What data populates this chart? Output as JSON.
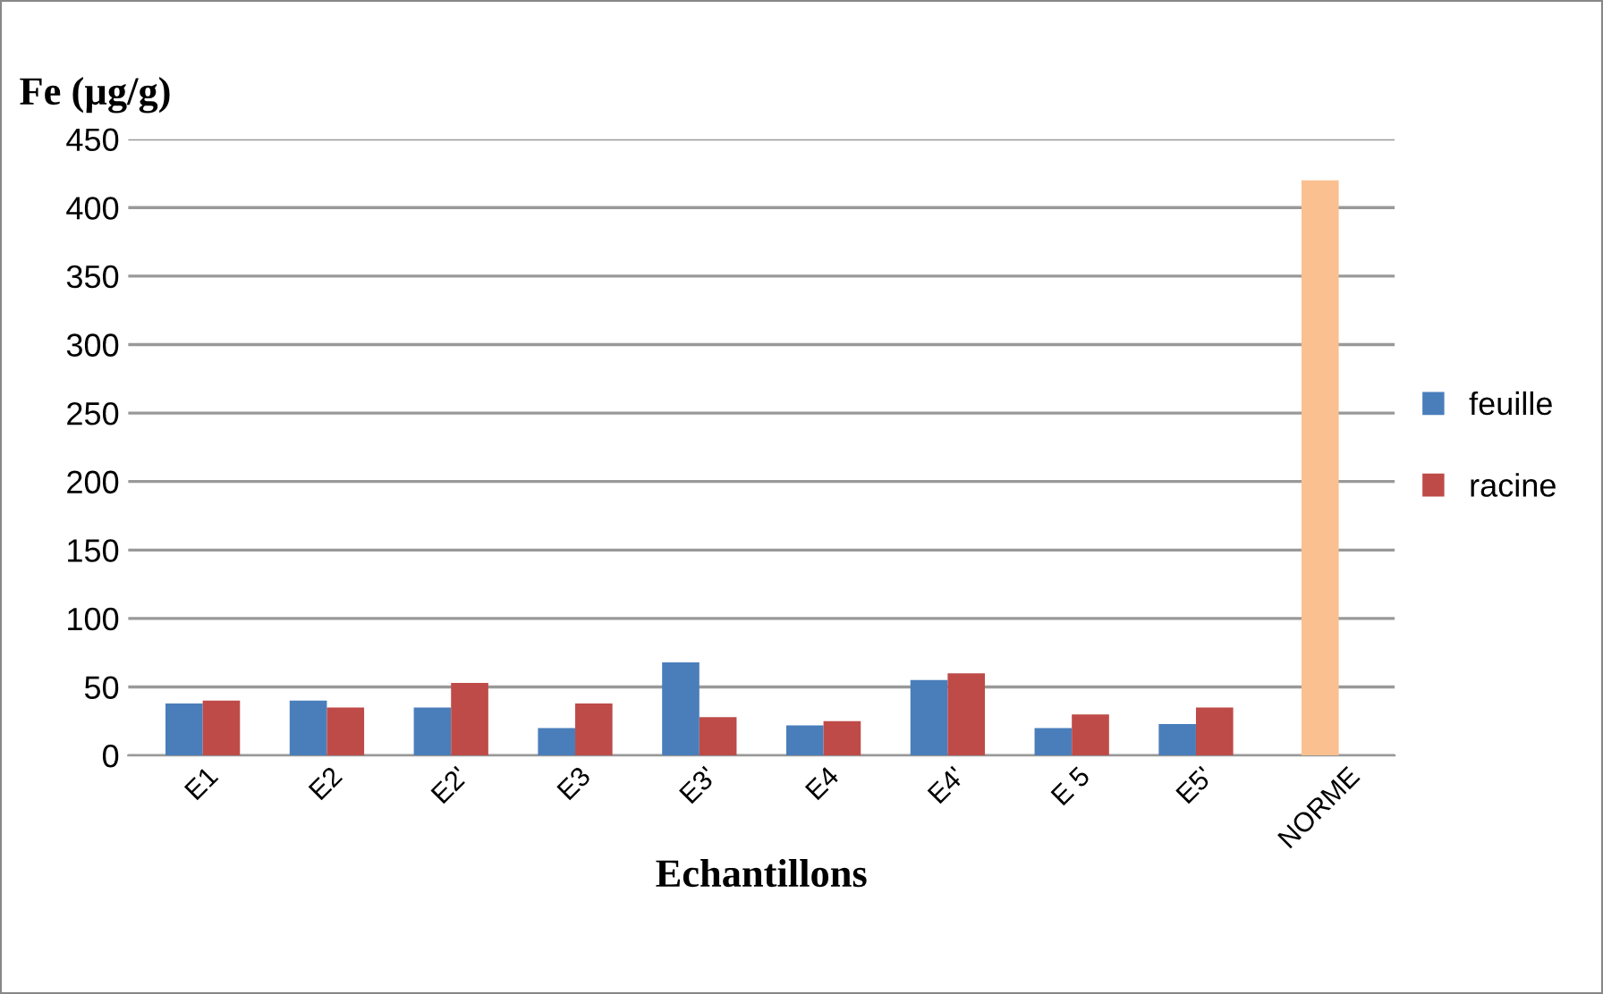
{
  "chart_data": {
    "type": "bar",
    "ylabel": "Fe (µg/g)",
    "xlabel": "Echantillons",
    "categories": [
      "E1",
      "E2",
      "E2'",
      "E3",
      "E3'",
      "E4",
      "E4'",
      "E 5",
      "E5'",
      "NORME"
    ],
    "series": [
      {
        "name": "feuille",
        "color": "#4a7ebb",
        "values": [
          38,
          40,
          35,
          20,
          68,
          22,
          55,
          20,
          23,
          null
        ]
      },
      {
        "name": "racine",
        "color": "#be4b48",
        "values": [
          40,
          35,
          53,
          38,
          28,
          25,
          60,
          30,
          35,
          null
        ]
      },
      {
        "color": "#fac090",
        "values": [
          null,
          null,
          null,
          null,
          null,
          null,
          null,
          null,
          null,
          420
        ]
      }
    ],
    "ylim": [
      0,
      450
    ],
    "yticks": [
      0,
      50,
      100,
      150,
      200,
      250,
      300,
      350,
      400,
      450
    ],
    "grid": "y",
    "legend": "right"
  }
}
